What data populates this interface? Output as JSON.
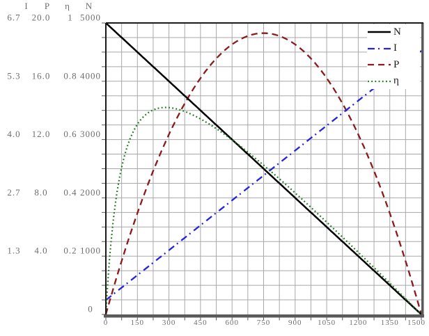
{
  "page": {
    "background": "#ffffff"
  },
  "axes": {
    "left": {
      "headers": [
        "I",
        "P",
        "η",
        "N"
      ],
      "columns": [
        {
          "name": "I",
          "values": [
            "6.7",
            "5.3",
            "4.0",
            "2.7",
            "1.3"
          ]
        },
        {
          "name": "P",
          "values": [
            "20.0",
            "16.0",
            "12.0",
            "8.0",
            "4.0"
          ]
        },
        {
          "name": "η",
          "values": [
            "1",
            "0.8",
            "0.6",
            "0.4",
            "0.2"
          ]
        },
        {
          "name": "N",
          "values": [
            "5000",
            "4000",
            "3000",
            "2000",
            "1000",
            "0"
          ]
        }
      ]
    },
    "x": {
      "tick_labels": [
        "0",
        "150",
        "300",
        "450",
        "600",
        "750",
        "900",
        "1050",
        "1200",
        "1350",
        "1500"
      ]
    }
  },
  "legend": {
    "items": [
      {
        "label": "N",
        "color": "#000000",
        "style": "solid"
      },
      {
        "label": "I",
        "color": "#2323e0",
        "style": "dash-dot"
      },
      {
        "label": "P",
        "color": "#8b1a1a",
        "style": "dashed"
      },
      {
        "label": "η",
        "color": "#177a17",
        "style": "dotted"
      }
    ]
  },
  "chart_data": {
    "type": "line",
    "title": "",
    "x_range": [
      0,
      1500
    ],
    "x_ticks": [
      0,
      150,
      300,
      450,
      600,
      750,
      900,
      1050,
      1200,
      1350,
      1500
    ],
    "y_axes": {
      "N": {
        "min": 0,
        "max": 5000
      },
      "I": {
        "min": 0,
        "max": 6.7
      },
      "P": {
        "min": 0,
        "max": 20
      },
      "eta": {
        "min": 0,
        "max": 1
      }
    },
    "grid": true,
    "legend_position": "top-right",
    "x": [
      0,
      150,
      300,
      450,
      600,
      750,
      900,
      1050,
      1200,
      1350,
      1500
    ],
    "series": [
      {
        "name": "N",
        "axis": "N",
        "values": [
          5000,
          4500,
          4000,
          3500,
          3000,
          2500,
          2000,
          1500,
          1000,
          500,
          0
        ]
      },
      {
        "name": "I",
        "axis": "I",
        "values": [
          0.33,
          0.9,
          1.48,
          2.05,
          2.62,
          3.2,
          3.77,
          4.34,
          4.92,
          5.49,
          6.06
        ]
      },
      {
        "name": "P",
        "axis": "P",
        "values": [
          0,
          6.95,
          12.35,
          16.2,
          18.5,
          19.3,
          18.5,
          16.2,
          12.35,
          6.95,
          0
        ]
      },
      {
        "name": "η",
        "axis": "eta",
        "values": [
          0,
          0.65,
          0.71,
          0.67,
          0.6,
          0.51,
          0.42,
          0.32,
          0.21,
          0.11,
          0
        ]
      }
    ],
    "model": {
      "stall_torque": 1500,
      "no_load_speed": 5000,
      "no_load_current": 0.33,
      "stall_current": 6.06,
      "peak_power": 19.3,
      "peak_power_torque": 750,
      "peak_efficiency": 0.71,
      "peak_efficiency_torque": 283
    },
    "colors": {
      "grid": "#a8a8a8",
      "frame_dark": "#1a1a1a",
      "frame_gray": "#5a5a5a",
      "label_text": "#6e6e6e"
    }
  }
}
